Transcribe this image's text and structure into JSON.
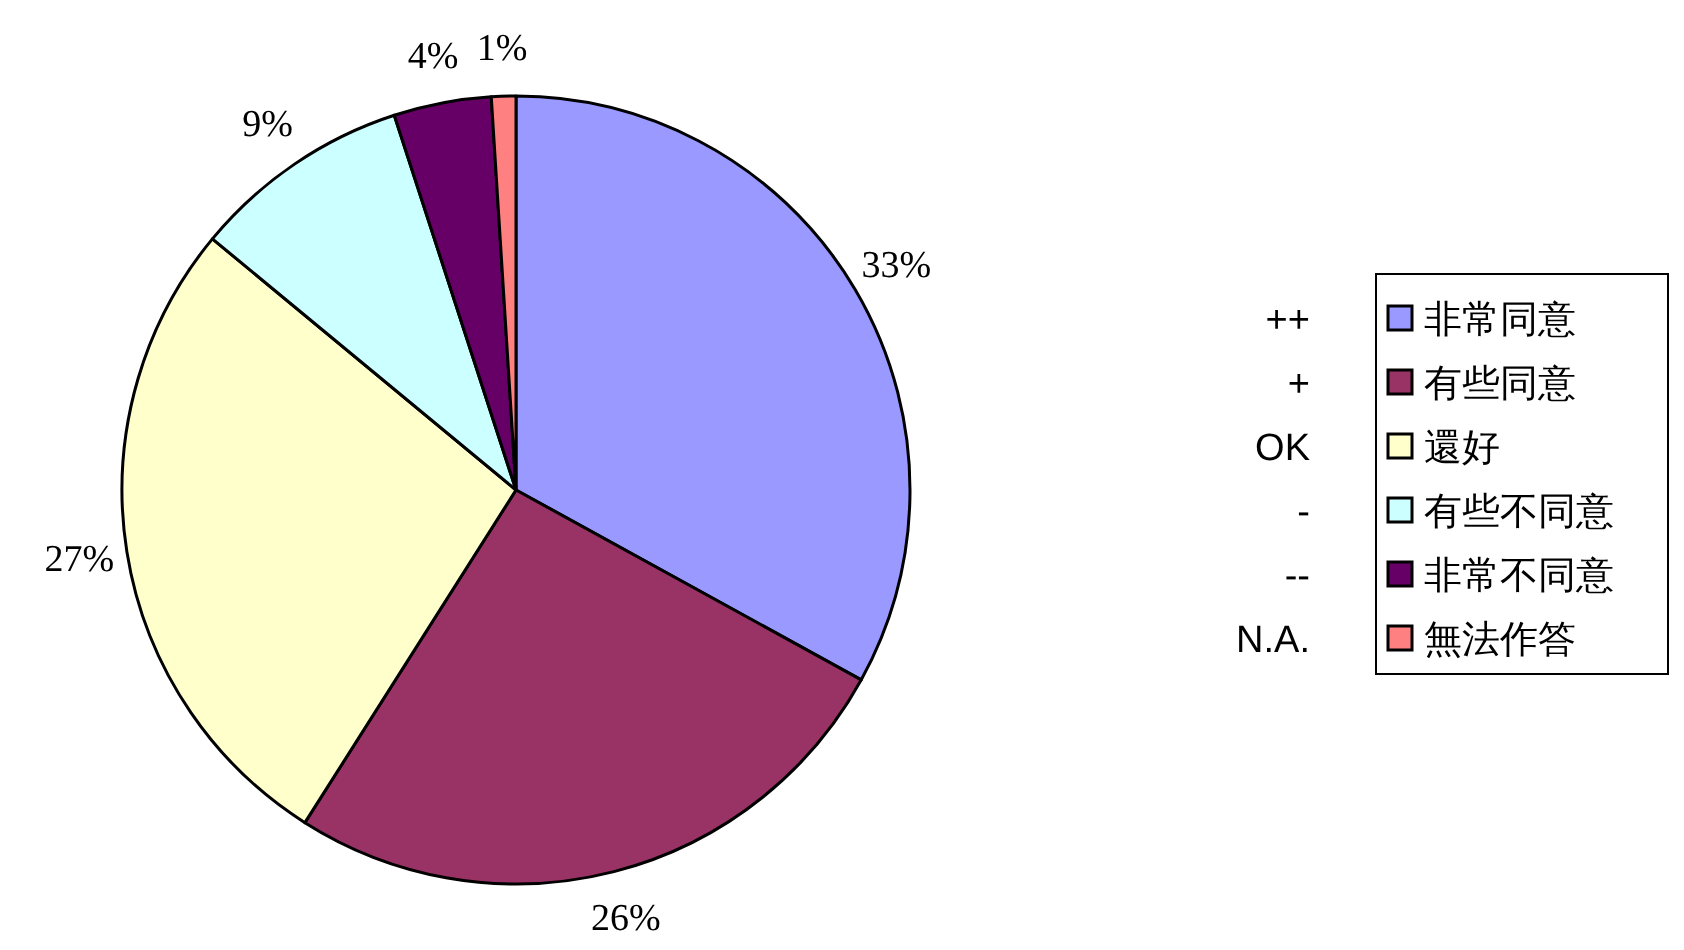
{
  "chart_data": {
    "type": "pie",
    "categories": [
      "非常同意",
      "有些同意",
      "還好",
      "有些不同意",
      "非常不同意",
      "無法作答"
    ],
    "values": [
      33,
      26,
      27,
      9,
      4,
      1
    ],
    "colors": [
      "#9999ff",
      "#993366",
      "#ffffcc",
      "#ccffff",
      "#660066",
      "#ff8080"
    ],
    "value_labels": [
      "33%",
      "26%",
      "27%",
      "9%",
      "4%",
      "1%"
    ],
    "annotations": [
      "++",
      "+",
      "OK",
      "-",
      "--",
      "N.A."
    ],
    "legend": "right"
  }
}
